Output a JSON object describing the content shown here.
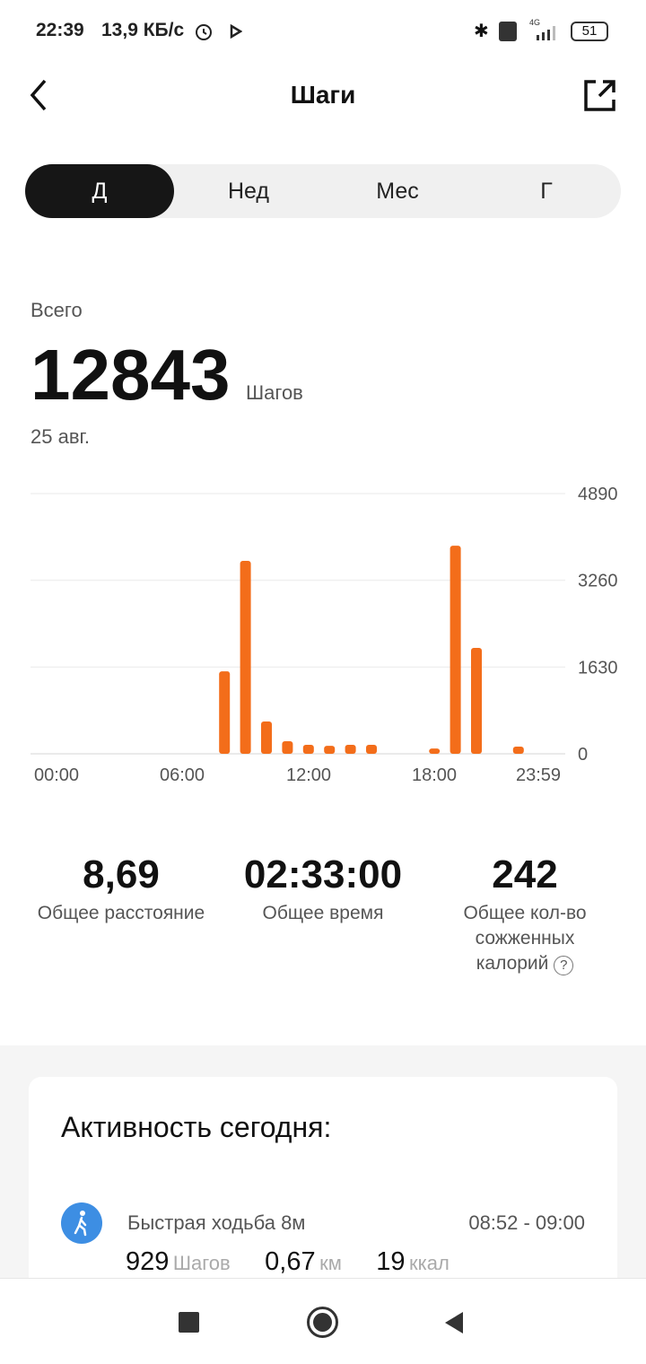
{
  "status_bar": {
    "time": "22:39",
    "speed": "13,9 КБ/с",
    "network": "4G",
    "battery": "51"
  },
  "header": {
    "title": "Шаги"
  },
  "tabs": [
    {
      "label": "Д",
      "active": true
    },
    {
      "label": "Нед"
    },
    {
      "label": "Мес"
    },
    {
      "label": "Г"
    }
  ],
  "summary": {
    "label": "Всего",
    "value": "12843",
    "unit": "Шагов",
    "date": "25 авг."
  },
  "chart_data": {
    "type": "bar",
    "x_ticks": [
      "00:00",
      "06:00",
      "12:00",
      "18:00",
      "23:59"
    ],
    "y_ticks": [
      "4890",
      "3260",
      "1630",
      "0"
    ],
    "ylim": [
      0,
      4890
    ],
    "grid": true,
    "color": "#f36d1a",
    "hours": [
      8,
      9,
      10,
      11,
      12,
      13,
      14,
      15,
      18,
      19,
      20,
      22
    ],
    "values": [
      1550,
      3625,
      607,
      236,
      169,
      150,
      169,
      169,
      100,
      3910,
      1990,
      135
    ]
  },
  "stats": [
    {
      "value": "8,69",
      "label": "Общее расстояние"
    },
    {
      "value": "02:33:00",
      "label": "Общее время"
    },
    {
      "value": "242",
      "label": "Общее кол-во сожженных калорий"
    }
  ],
  "activity": {
    "title": "Активность сегодня:",
    "items": [
      {
        "name": "Быстрая ходьба 8м",
        "time": "08:52 - 09:00",
        "steps": "929",
        "steps_unit": "Шагов",
        "distance": "0,67",
        "distance_unit": "км",
        "calories": "19",
        "calories_unit": "ккал",
        "icon": "walking-icon",
        "icon_color": "#3d8ee3"
      }
    ]
  }
}
